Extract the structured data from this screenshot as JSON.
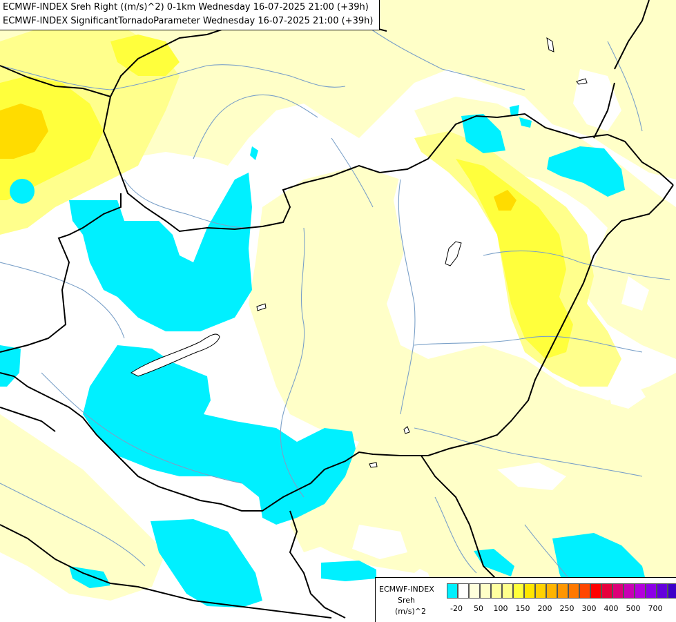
{
  "titles": {
    "line1": "ECMWF-INDEX Sreh Right ((m/s)^2) 0-1km Wednesday 16-07-2025 21:00 (+39h)",
    "line2": "ECMWF-INDEX SignificantTornadoParameter Wednesday 16-07-2025 21:00 (+39h)"
  },
  "colors": {
    "background": "#ffffff",
    "cyan": "#00f0ff",
    "pale_yellow": "#ffffc8",
    "light_yellow": "#ffff8c",
    "yellow": "#ffff3c",
    "gold": "#ffdc00",
    "orange": "#ffb400",
    "border": "#000000",
    "river": "#7aa0c8"
  },
  "legend": {
    "name": "ECMWF-INDEX",
    "variable": "Sreh",
    "unit": "(m/s)^2",
    "swatch_colors": [
      "#00f0ff",
      "#ffffff",
      "#ffffdc",
      "#ffffc8",
      "#ffffa0",
      "#ffff8c",
      "#ffff3c",
      "#ffe600",
      "#ffd200",
      "#ffb400",
      "#ff9600",
      "#ff7800",
      "#ff4600",
      "#ff0000",
      "#e6003c",
      "#dc0078",
      "#c800b4",
      "#b400dc",
      "#8c00e6",
      "#6400dc",
      "#3c00c8",
      "#000096"
    ],
    "tick_labels": [
      "-20",
      "50",
      "100",
      "150",
      "200",
      "250",
      "300",
      "400",
      "500",
      "700"
    ]
  }
}
